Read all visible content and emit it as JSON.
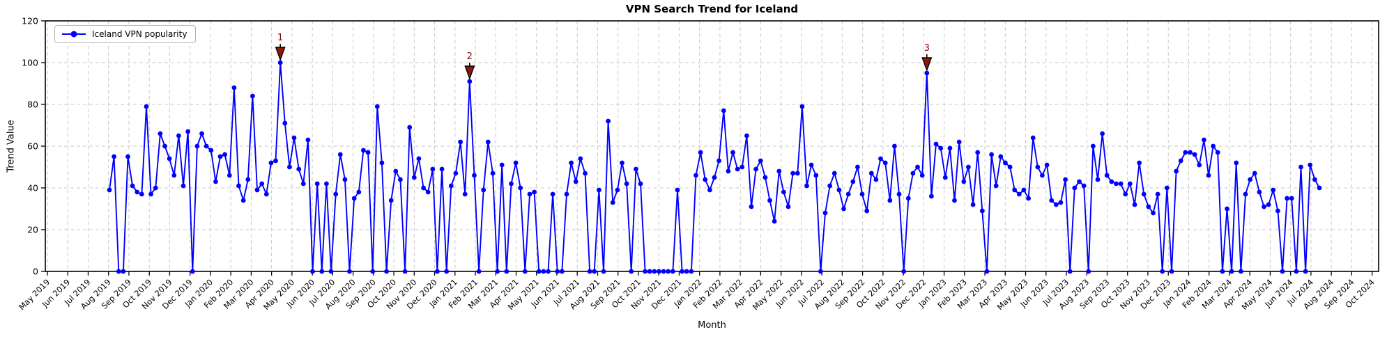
{
  "title": "VPN Search Trend for Iceland",
  "legend": {
    "series_label": "Iceland VPN popularity"
  },
  "axes": {
    "x_label": "Month",
    "y_label": "Trend Value",
    "y_ticks": [
      0,
      20,
      40,
      60,
      80,
      100,
      120
    ]
  },
  "colors": {
    "line": "#0000ff",
    "marker": "#0000ff",
    "annotation_text": "#8b0000",
    "annotation_marker_fill": "#8b1a0a",
    "annotation_marker_edge": "#000000",
    "grid": "#c9c9c9",
    "frame": "#000000"
  },
  "chart_data": {
    "type": "line",
    "title": "VPN Search Trend for Iceland",
    "xlabel": "Month",
    "ylabel": "Trend Value",
    "ylim": [
      0,
      120
    ],
    "grid": true,
    "legend_position": "upper-left",
    "x_tick_labels": [
      "May 2019",
      "Jun 2019",
      "Jul 2019",
      "Aug 2019",
      "Sep 2019",
      "Oct 2019",
      "Nov 2019",
      "Dec 2019",
      "Jan 2020",
      "Feb 2020",
      "Mar 2020",
      "Apr 2020",
      "May 2020",
      "Jun 2020",
      "Jul 2020",
      "Aug 2020",
      "Sep 2020",
      "Oct 2020",
      "Nov 2020",
      "Dec 2020",
      "Jan 2021",
      "Feb 2021",
      "Mar 2021",
      "Apr 2021",
      "May 2021",
      "Jun 2021",
      "Jul 2021",
      "Aug 2021",
      "Sep 2021",
      "Oct 2021",
      "Nov 2021",
      "Dec 2021",
      "Jan 2022",
      "Feb 2022",
      "Mar 2022",
      "Apr 2022",
      "May 2022",
      "Jun 2022",
      "Jul 2022",
      "Aug 2022",
      "Sep 2022",
      "Oct 2022",
      "Nov 2022",
      "Dec 2022",
      "Jan 2023",
      "Feb 2023",
      "Mar 2023",
      "Apr 2023",
      "May 2023",
      "Jun 2023",
      "Jul 2023",
      "Aug 2023",
      "Sep 2023",
      "Oct 2023",
      "Nov 2023",
      "Dec 2023",
      "Jan 2024",
      "Feb 2024",
      "Mar 2024",
      "Apr 2024",
      "May 2024",
      "Jun 2024",
      "Jul 2024",
      "Aug 2024",
      "Sep 2024",
      "Oct 2024"
    ],
    "series": [
      {
        "name": "Iceland VPN popularity",
        "first_point": "mid Aug 2019",
        "last_point": "mid Jul 2024",
        "interval": "weekly",
        "values": [
          39,
          55,
          0,
          0,
          55,
          41,
          38,
          37,
          79,
          37,
          40,
          66,
          60,
          54,
          46,
          65,
          41,
          67,
          0,
          60,
          66,
          60,
          58,
          43,
          55,
          56,
          46,
          88,
          41,
          34,
          44,
          84,
          39,
          42,
          37,
          52,
          53,
          100,
          71,
          50,
          64,
          49,
          42,
          63,
          0,
          42,
          0,
          42,
          0,
          37,
          56,
          44,
          0,
          35,
          38,
          58,
          57,
          0,
          79,
          52,
          0,
          34,
          48,
          44,
          0,
          69,
          45,
          54,
          40,
          38,
          49,
          0,
          49,
          0,
          41,
          47,
          62,
          37,
          91,
          46,
          0,
          39,
          62,
          47,
          0,
          51,
          0,
          42,
          52,
          40,
          0,
          37,
          38,
          0,
          0,
          0,
          37,
          0,
          0,
          37,
          52,
          43,
          54,
          47,
          0,
          0,
          39,
          0,
          72,
          33,
          39,
          52,
          42,
          0,
          49,
          42,
          0,
          0,
          0,
          0,
          0,
          0,
          0,
          39,
          0,
          0,
          0,
          46,
          57,
          44,
          39,
          45,
          53,
          77,
          48,
          57,
          49,
          50,
          65,
          31,
          49,
          53,
          45,
          34,
          24,
          48,
          38,
          31,
          47,
          47,
          79,
          41,
          51,
          46,
          0,
          28,
          41,
          47,
          39,
          30,
          37,
          43,
          50,
          37,
          29,
          47,
          44,
          54,
          52,
          34,
          60,
          37,
          0,
          35,
          47,
          50,
          46,
          95,
          36,
          61,
          59,
          45,
          59,
          34,
          62,
          43,
          50,
          32,
          57,
          29,
          0,
          56,
          41,
          55,
          52,
          50,
          39,
          37,
          39,
          35,
          64,
          50,
          46,
          51,
          34,
          32,
          33,
          44,
          0,
          40,
          43,
          41,
          0,
          60,
          44,
          66,
          46,
          43,
          42,
          42,
          37,
          42,
          32,
          52,
          37,
          31,
          28,
          37,
          0,
          40,
          0,
          48,
          53,
          57,
          57,
          56,
          51,
          63,
          46,
          60,
          57,
          0,
          30,
          0,
          52,
          0,
          37,
          44,
          47,
          38,
          31,
          32,
          39,
          29,
          0,
          35,
          35,
          0,
          50,
          0,
          51,
          44,
          40
        ]
      }
    ],
    "annotations": [
      {
        "label": "1",
        "index": 37,
        "value": 100
      },
      {
        "label": "2",
        "index": 78,
        "value": 91
      },
      {
        "label": "3",
        "index": 177,
        "value": 95
      }
    ]
  }
}
